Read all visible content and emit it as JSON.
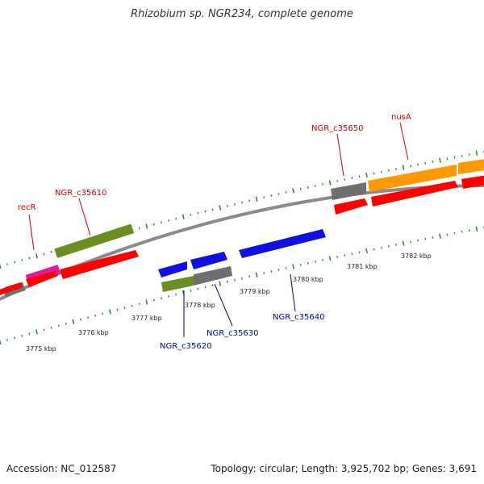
{
  "title": "Rhizobium sp. NGR234, complete genome",
  "footer": {
    "accession": "Accession: NC_012587",
    "topology": "Topology: circular; Length: 3,925,702 bp; Genes: 3,691"
  },
  "colors": {
    "backbone": "#8a8a8a",
    "tick": "#2e8b2e",
    "red_label": "#cc0000",
    "blue_label": "#0000aa",
    "gray_gene": "#6f6f6f",
    "magenta_gene": "#e8189c",
    "olive_gene": "#6b8e23",
    "orange_gene": "#ff9900",
    "red_cds": "#ff0000",
    "blue_gene": "#1010e0"
  },
  "scale_labels_lower": [
    "3775 kbp",
    "3776 kbp",
    "3777 kbp",
    "3778 kbp",
    "3779 kbp",
    "3780 kbp",
    "3781 kbp",
    "3782 kbp"
  ],
  "gene_labels_upper": [
    "recR",
    "NGR_c35610",
    "NGR_c35650",
    "nusA"
  ],
  "gene_labels_lower": [
    "NGR_c35620",
    "NGR_c35630",
    "NGR_c35640"
  ]
}
